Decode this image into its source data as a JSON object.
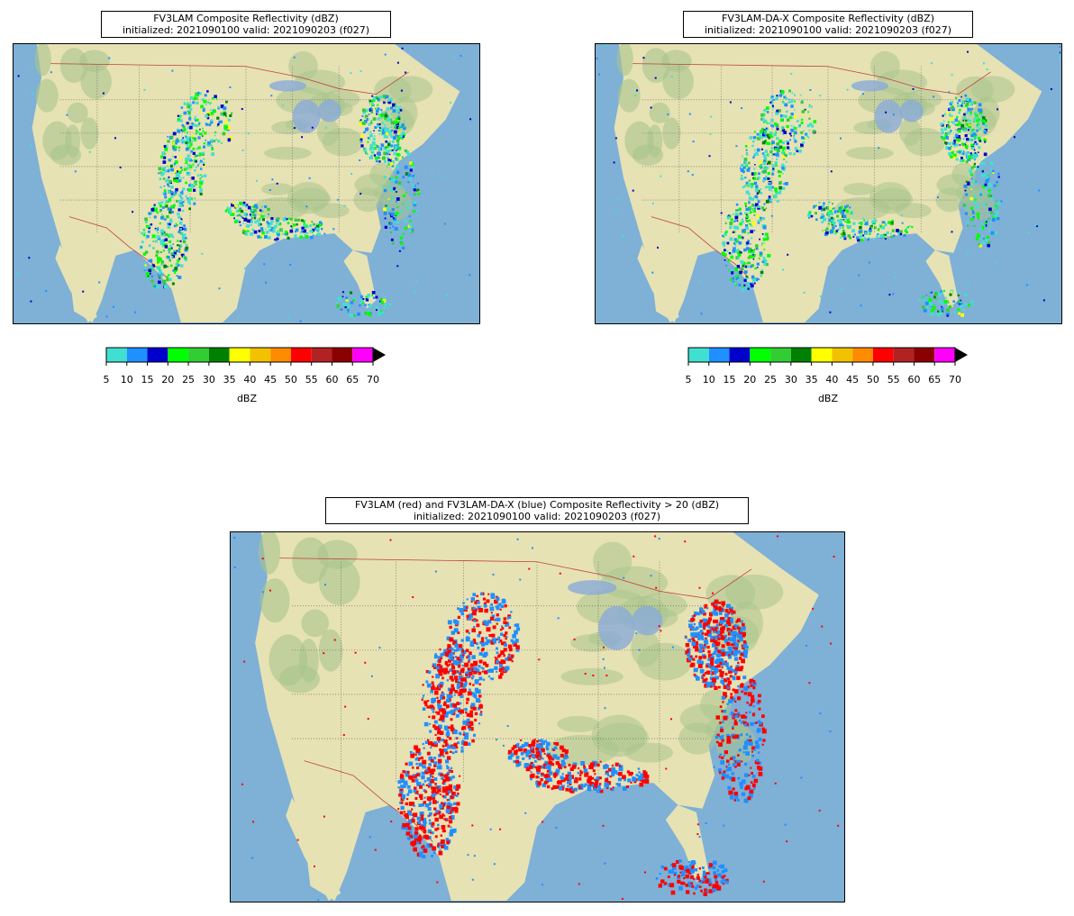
{
  "panels": [
    {
      "title_line1": "FV3LAM Composite Reflectivity (dBZ)",
      "title_line2": "initialized: 2021090100 valid: 2021090203 (f027)"
    },
    {
      "title_line1": "FV3LAM-DA-X Composite Reflectivity (dBZ)",
      "title_line2": "initialized: 2021090100 valid: 2021090203 (f027)"
    },
    {
      "title_line1": "FV3LAM (red) and FV3LAM-DA-X (blue) Composite Reflectivity > 20 (dBZ)",
      "title_line2": "initialized: 2021090100 valid: 2021090203 (f027)"
    }
  ],
  "colorbar": {
    "label": "dBZ",
    "ticks": [
      "5",
      "10",
      "15",
      "20",
      "25",
      "30",
      "35",
      "40",
      "45",
      "50",
      "55",
      "60",
      "65",
      "70"
    ],
    "colors": [
      "#40e0d0",
      "#1e90ff",
      "#0000cd",
      "#00ff00",
      "#32cd32",
      "#008000",
      "#ffff00",
      "#f2c200",
      "#ff8c00",
      "#ff0000",
      "#b22222",
      "#8b0000",
      "#ff00ff"
    ],
    "extend_color": "#000000"
  },
  "colors": {
    "ocean": "#7fb0d6",
    "land": "#e6e2b4",
    "forest": "#a9c48e",
    "overlay_fv3lam": "#ff0000",
    "overlay_dax": "#1e90ff"
  }
}
